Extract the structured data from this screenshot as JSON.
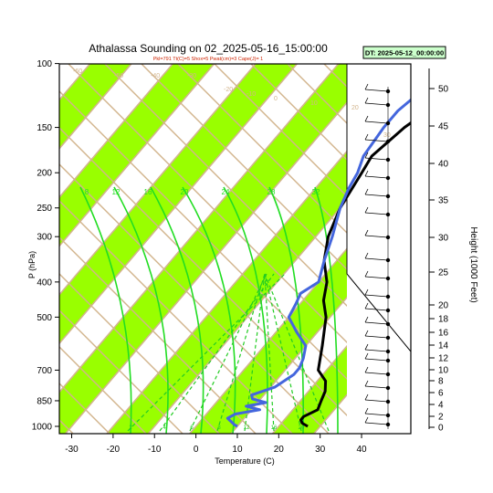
{
  "title": "Athalassa Sounding on 02_2025-05-16_15:00:00",
  "subtitle": "Pkl=791 Tt(C)=5 Shox=5 Pwat(cm)=3 Cape(J)= 1",
  "badge": "DT: 2025-05-12_00:00:00",
  "colors": {
    "band": "#99ff00",
    "isotherm": "#d2b48c",
    "moist_adiabat": "#22dd22",
    "mixing_ratio": "#22cc22",
    "temperature": "#000000",
    "dewpoint": "#4466dd",
    "badge_bg": "#ccffcc"
  },
  "chart_data": {
    "type": "line",
    "title": "Athalassa Sounding on 02_2025-05-16_15:00:00",
    "xlabel": "Temperature (C)",
    "ylabel": "P (hPa)",
    "y2label": "Height (1000 Feet)",
    "xlim": [
      -33,
      51
    ],
    "ylim": [
      1025,
      100
    ],
    "y_scale": "log",
    "x_ticks": [
      -30,
      -20,
      -10,
      0,
      10,
      20,
      30,
      40
    ],
    "y_ticks": [
      100,
      150,
      200,
      250,
      300,
      400,
      500,
      700,
      850,
      1000
    ],
    "y2_ticks": [
      0,
      2,
      4,
      6,
      8,
      10,
      12,
      14,
      16,
      18,
      20,
      25,
      30,
      35,
      40,
      45,
      50
    ],
    "isotherm_labels": [
      "-60",
      "-50",
      "-40",
      "-30",
      "-20",
      "-10",
      "0",
      "10",
      "20",
      "30"
    ],
    "adiabat_labels": [
      "8",
      "12",
      "16",
      "20",
      "24",
      "28",
      "32"
    ],
    "mixing_ratio_labels": [
      "2",
      "4",
      "6",
      "8",
      "12",
      "16",
      "20"
    ],
    "series": [
      {
        "name": "temperature",
        "points": [
          [
            27,
            1000
          ],
          [
            25,
            980
          ],
          [
            24,
            960
          ],
          [
            24,
            940
          ],
          [
            26,
            900
          ],
          [
            25,
            850
          ],
          [
            24,
            800
          ],
          [
            22,
            750
          ],
          [
            18,
            700
          ],
          [
            14,
            600
          ],
          [
            9,
            500
          ],
          [
            5,
            450
          ],
          [
            2,
            400
          ],
          [
            -3,
            350
          ],
          [
            -7,
            300
          ],
          [
            -10,
            250
          ],
          [
            -12,
            200
          ],
          [
            -13,
            180
          ],
          [
            -11,
            150
          ],
          [
            -8,
            130
          ],
          [
            -4,
            115
          ],
          [
            0,
            105
          ],
          [
            2,
            100
          ]
        ]
      },
      {
        "name": "dewpoint",
        "points": [
          [
            10,
            1000
          ],
          [
            9,
            990
          ],
          [
            6,
            950
          ],
          [
            7,
            925
          ],
          [
            12,
            900
          ],
          [
            8,
            880
          ],
          [
            12,
            860
          ],
          [
            8,
            840
          ],
          [
            7,
            820
          ],
          [
            11,
            780
          ],
          [
            13,
            720
          ],
          [
            13,
            690
          ],
          [
            12,
            650
          ],
          [
            10,
            600
          ],
          [
            5,
            550
          ],
          [
            0,
            500
          ],
          [
            -1,
            460
          ],
          [
            -2,
            430
          ],
          [
            0,
            400
          ],
          [
            -3,
            350
          ],
          [
            -6,
            300
          ],
          [
            -10,
            250
          ],
          [
            -12,
            220
          ],
          [
            -13,
            200
          ],
          [
            -15,
            180
          ],
          [
            -16,
            150
          ],
          [
            -16,
            135
          ],
          [
            -15,
            125
          ],
          [
            -11,
            112
          ],
          [
            -7,
            100
          ]
        ]
      }
    ]
  }
}
